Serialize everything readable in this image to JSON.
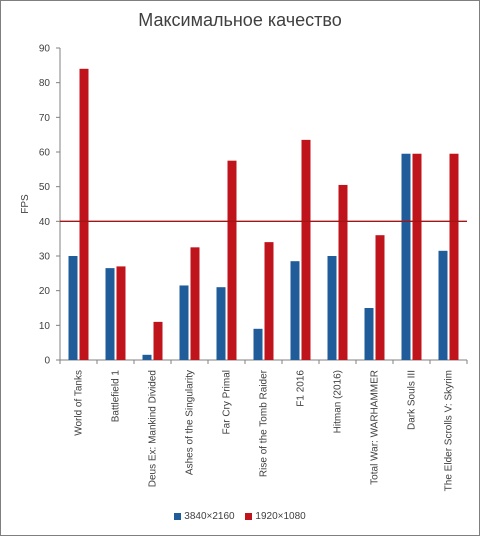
{
  "colors": {
    "series_1": "#1f5c99",
    "series_2": "#c0141c",
    "reference_line": "#a31515",
    "axis": "#808080",
    "text": "#404040"
  },
  "chart_data": {
    "type": "bar",
    "title": "Максимальное качество",
    "xlabel": "",
    "ylabel": "FPS",
    "ylim": [
      0,
      90
    ],
    "yticks": [
      0,
      10,
      20,
      30,
      40,
      50,
      60,
      70,
      80,
      90
    ],
    "grid": false,
    "legend_position": "bottom",
    "reference_line": 40,
    "categories": [
      "World of Tanks",
      "Battlefield 1",
      "Deus Ex: Mankind Divided",
      "Ashes of the Singularity",
      "Far Cry Primal",
      "Rise of the Tomb Raider",
      "F1 2016",
      "Hitman (2016)",
      "Total War: WARHAMMER",
      "Dark Souls III",
      "The Elder Scrolls V: Skyrim"
    ],
    "series": [
      {
        "name": "3840×2160",
        "values": [
          30,
          26.5,
          1.5,
          21.5,
          21,
          9,
          28.5,
          30,
          15,
          59.5,
          31.5
        ]
      },
      {
        "name": "1920×1080",
        "values": [
          84,
          27,
          11,
          32.5,
          57.5,
          34,
          63.5,
          50.5,
          36,
          59.5,
          59.5
        ]
      }
    ]
  }
}
